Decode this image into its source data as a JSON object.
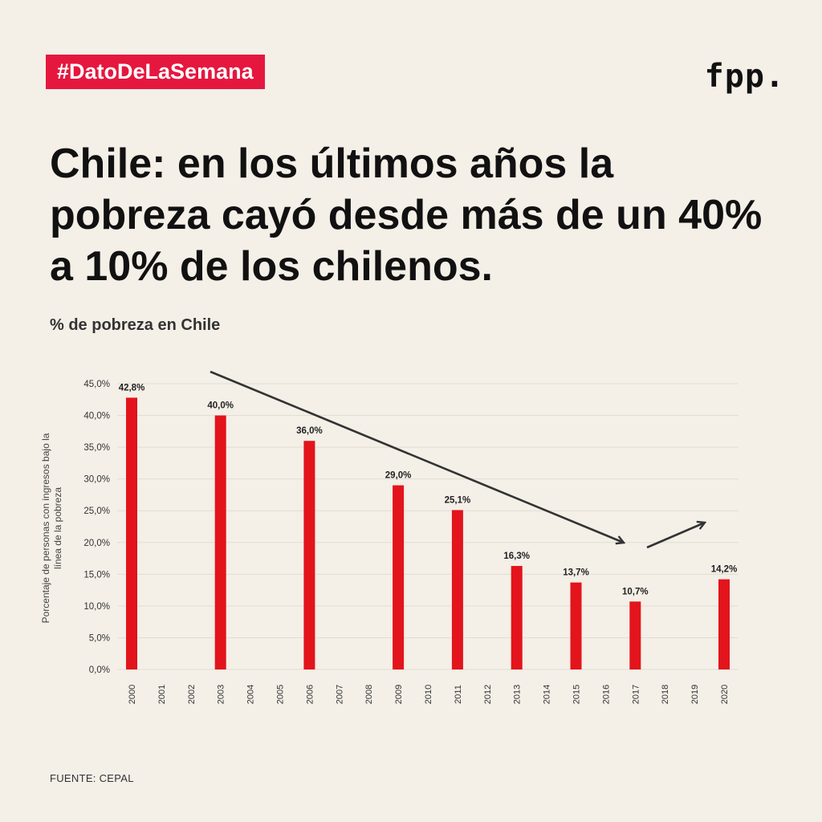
{
  "header": {
    "hashtag": "#DatoDeLaSemana",
    "logo": "fpp."
  },
  "headline": "Chile: en los últimos años la pobreza cayó desde más de un 40% a 10% de los chilenos.",
  "source": "FUENTE: CEPAL",
  "colors": {
    "background": "#f4efe7",
    "bar": "#e3141b",
    "tag": "#e5173f",
    "arrow": "#333333"
  },
  "chart_data": {
    "type": "bar",
    "title": "% de pobreza en Chile",
    "ylabel": "Porcentaje de personas con ingresos bajo la línea de la pobreza",
    "xlabel": "",
    "ylim": [
      0,
      45
    ],
    "yticks": [
      "0,0%",
      "5,0%",
      "10,0%",
      "15,0%",
      "20,0%",
      "25,0%",
      "30,0%",
      "35,0%",
      "40,0%",
      "45,0%"
    ],
    "categories": [
      "2000",
      "2001",
      "2002",
      "2003",
      "2004",
      "2005",
      "2006",
      "2007",
      "2008",
      "2009",
      "2010",
      "2011",
      "2012",
      "2013",
      "2014",
      "2015",
      "2016",
      "2017",
      "2018",
      "2019",
      "2020"
    ],
    "values": [
      42.8,
      null,
      null,
      40.0,
      null,
      null,
      36.0,
      null,
      null,
      29.0,
      null,
      25.1,
      null,
      16.3,
      null,
      13.7,
      null,
      10.7,
      null,
      null,
      14.2
    ],
    "data_labels": [
      "42,8%",
      "",
      "",
      "40,0%",
      "",
      "",
      "36,0%",
      "",
      "",
      "29,0%",
      "",
      "25,1%",
      "",
      "16,3%",
      "",
      "13,7%",
      "",
      "10,7%",
      "",
      "",
      "14,2%"
    ],
    "grid": true,
    "legend": "none",
    "annotations": [
      "downward trend arrow 2003–2017",
      "upward arrow 2017–2020"
    ]
  }
}
